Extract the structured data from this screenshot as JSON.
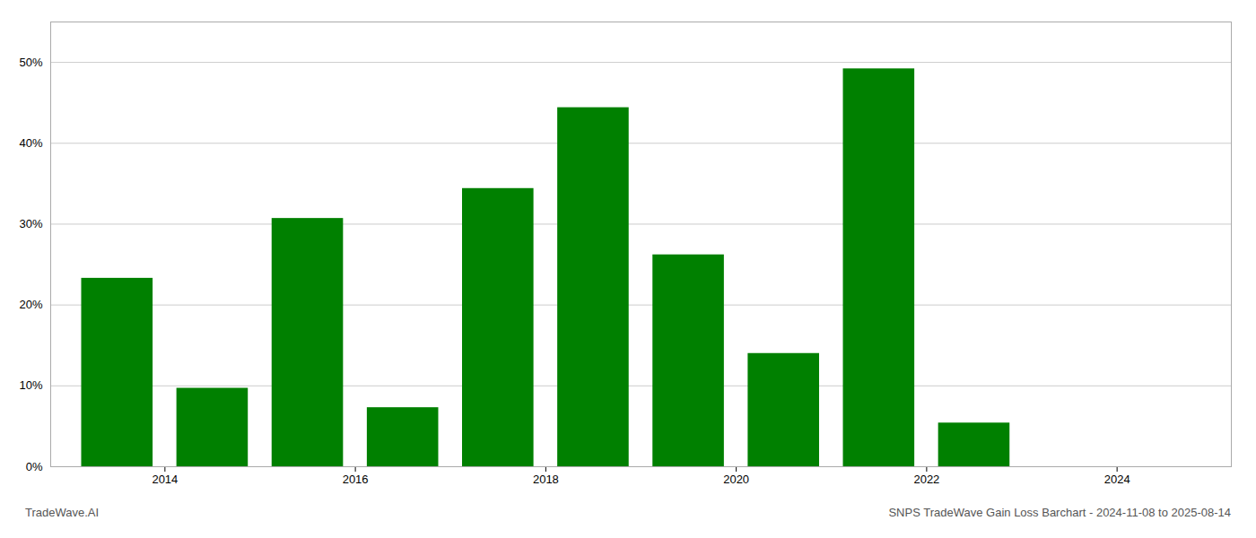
{
  "chart_data": {
    "type": "bar",
    "x": [
      2013.5,
      2014.5,
      2015.5,
      2016.5,
      2017.5,
      2018.5,
      2019.5,
      2020.5,
      2021.5,
      2022.5
    ],
    "values": [
      0.233,
      0.097,
      0.307,
      0.073,
      0.344,
      0.444,
      0.262,
      0.14,
      0.492,
      0.054
    ],
    "color": "#008000",
    "xlim": [
      2012.8,
      2025.2
    ],
    "xticks": [
      2014,
      2016,
      2018,
      2020,
      2022,
      2024
    ],
    "ylim": [
      0,
      0.55
    ],
    "yticks": [
      {
        "value": 0.0,
        "label": "0%"
      },
      {
        "value": 0.1,
        "label": "10%"
      },
      {
        "value": 0.2,
        "label": "20%"
      },
      {
        "value": 0.3,
        "label": "30%"
      },
      {
        "value": 0.4,
        "label": "40%"
      },
      {
        "value": 0.5,
        "label": "50%"
      }
    ],
    "grid": true,
    "annotations": [
      "TradeWave.AI",
      "SNPS TradeWave Gain Loss Barchart - 2024-11-08 to 2025-08-14"
    ]
  }
}
